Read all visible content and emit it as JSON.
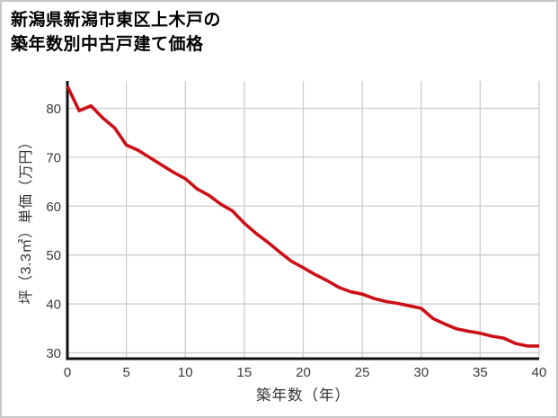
{
  "title": {
    "line1": "新潟県新潟市東区上木戸の",
    "line2": "築年数別中古戸建て価格"
  },
  "chart_data": {
    "type": "line",
    "title": "新潟県新潟市東区上木戸の築年数別中古戸建て価格",
    "xlabel": "築年数（年）",
    "ylabel": "坪（3.3㎡）単価（万円）",
    "x": [
      0,
      1,
      2,
      3,
      4,
      5,
      6,
      7,
      8,
      9,
      10,
      11,
      12,
      13,
      14,
      15,
      16,
      17,
      18,
      19,
      20,
      21,
      22,
      23,
      24,
      25,
      26,
      27,
      28,
      29,
      30,
      31,
      32,
      33,
      34,
      35,
      36,
      37,
      38,
      39,
      40
    ],
    "values": [
      84.5,
      79.5,
      80.5,
      78,
      76,
      72.5,
      71.4,
      69.9,
      68.4,
      66.9,
      65.6,
      63.5,
      62.2,
      60.4,
      59,
      56.5,
      54.4,
      52.6,
      50.6,
      48.7,
      47.4,
      46,
      44.8,
      43.4,
      42.5,
      42,
      41.1,
      40.5,
      40.1,
      39.6,
      39.1,
      37,
      35.9,
      34.9,
      34.4,
      34,
      33.4,
      33,
      31.9,
      31.4,
      31.4
    ],
    "xticks": [
      0,
      5,
      10,
      15,
      20,
      25,
      30,
      35,
      40
    ],
    "yticks": [
      30,
      40,
      50,
      60,
      70,
      80
    ],
    "xlim": [
      0,
      40
    ],
    "ylim": [
      28.8,
      85.6
    ],
    "grid": true,
    "legend": false,
    "colors": {
      "line": "#cc1018",
      "grid": "#cccccc",
      "axis": "#111111",
      "tick_text": "#3a3a3a",
      "background": "#ffffff",
      "frame_border": "#c6c6c6"
    }
  }
}
